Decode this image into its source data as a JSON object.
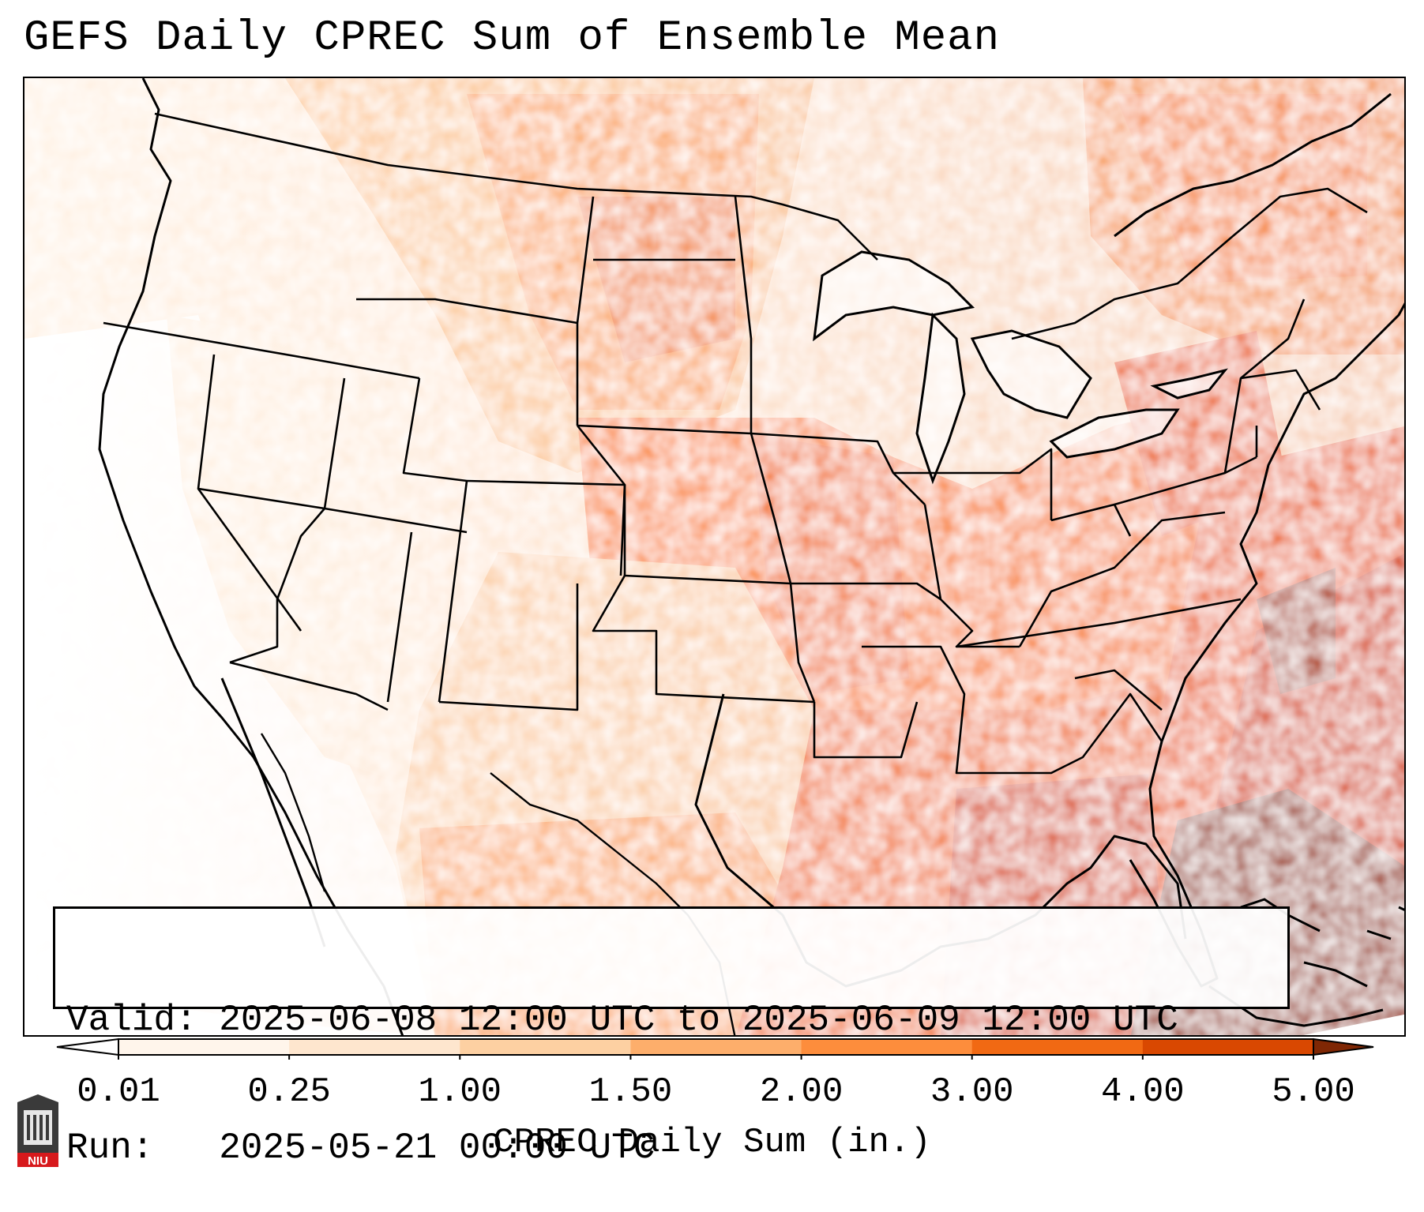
{
  "title": "GEFS Daily CPREC Sum of Ensemble Mean",
  "info": {
    "valid": "Valid: 2025-06-08 12:00 UTC to 2025-06-09 12:00 UTC",
    "run": "Run:   2025-05-21 00:00 UTC"
  },
  "colorbar": {
    "label": "CPREC Daily Sum (in.)",
    "ticks": [
      "0.01",
      "0.25",
      "1.00",
      "1.50",
      "2.00",
      "3.00",
      "4.00",
      "5.00"
    ],
    "colors": [
      "#fff5eb",
      "#fee6ce",
      "#fdd0a2",
      "#fdae6b",
      "#fd8d3c",
      "#f16913",
      "#d94801",
      "#8c2d04"
    ],
    "under_color": "#ffffff",
    "over_color": "#7f2704"
  },
  "logo": {
    "text": "NIU",
    "icon": "niu-logo-icon"
  }
}
